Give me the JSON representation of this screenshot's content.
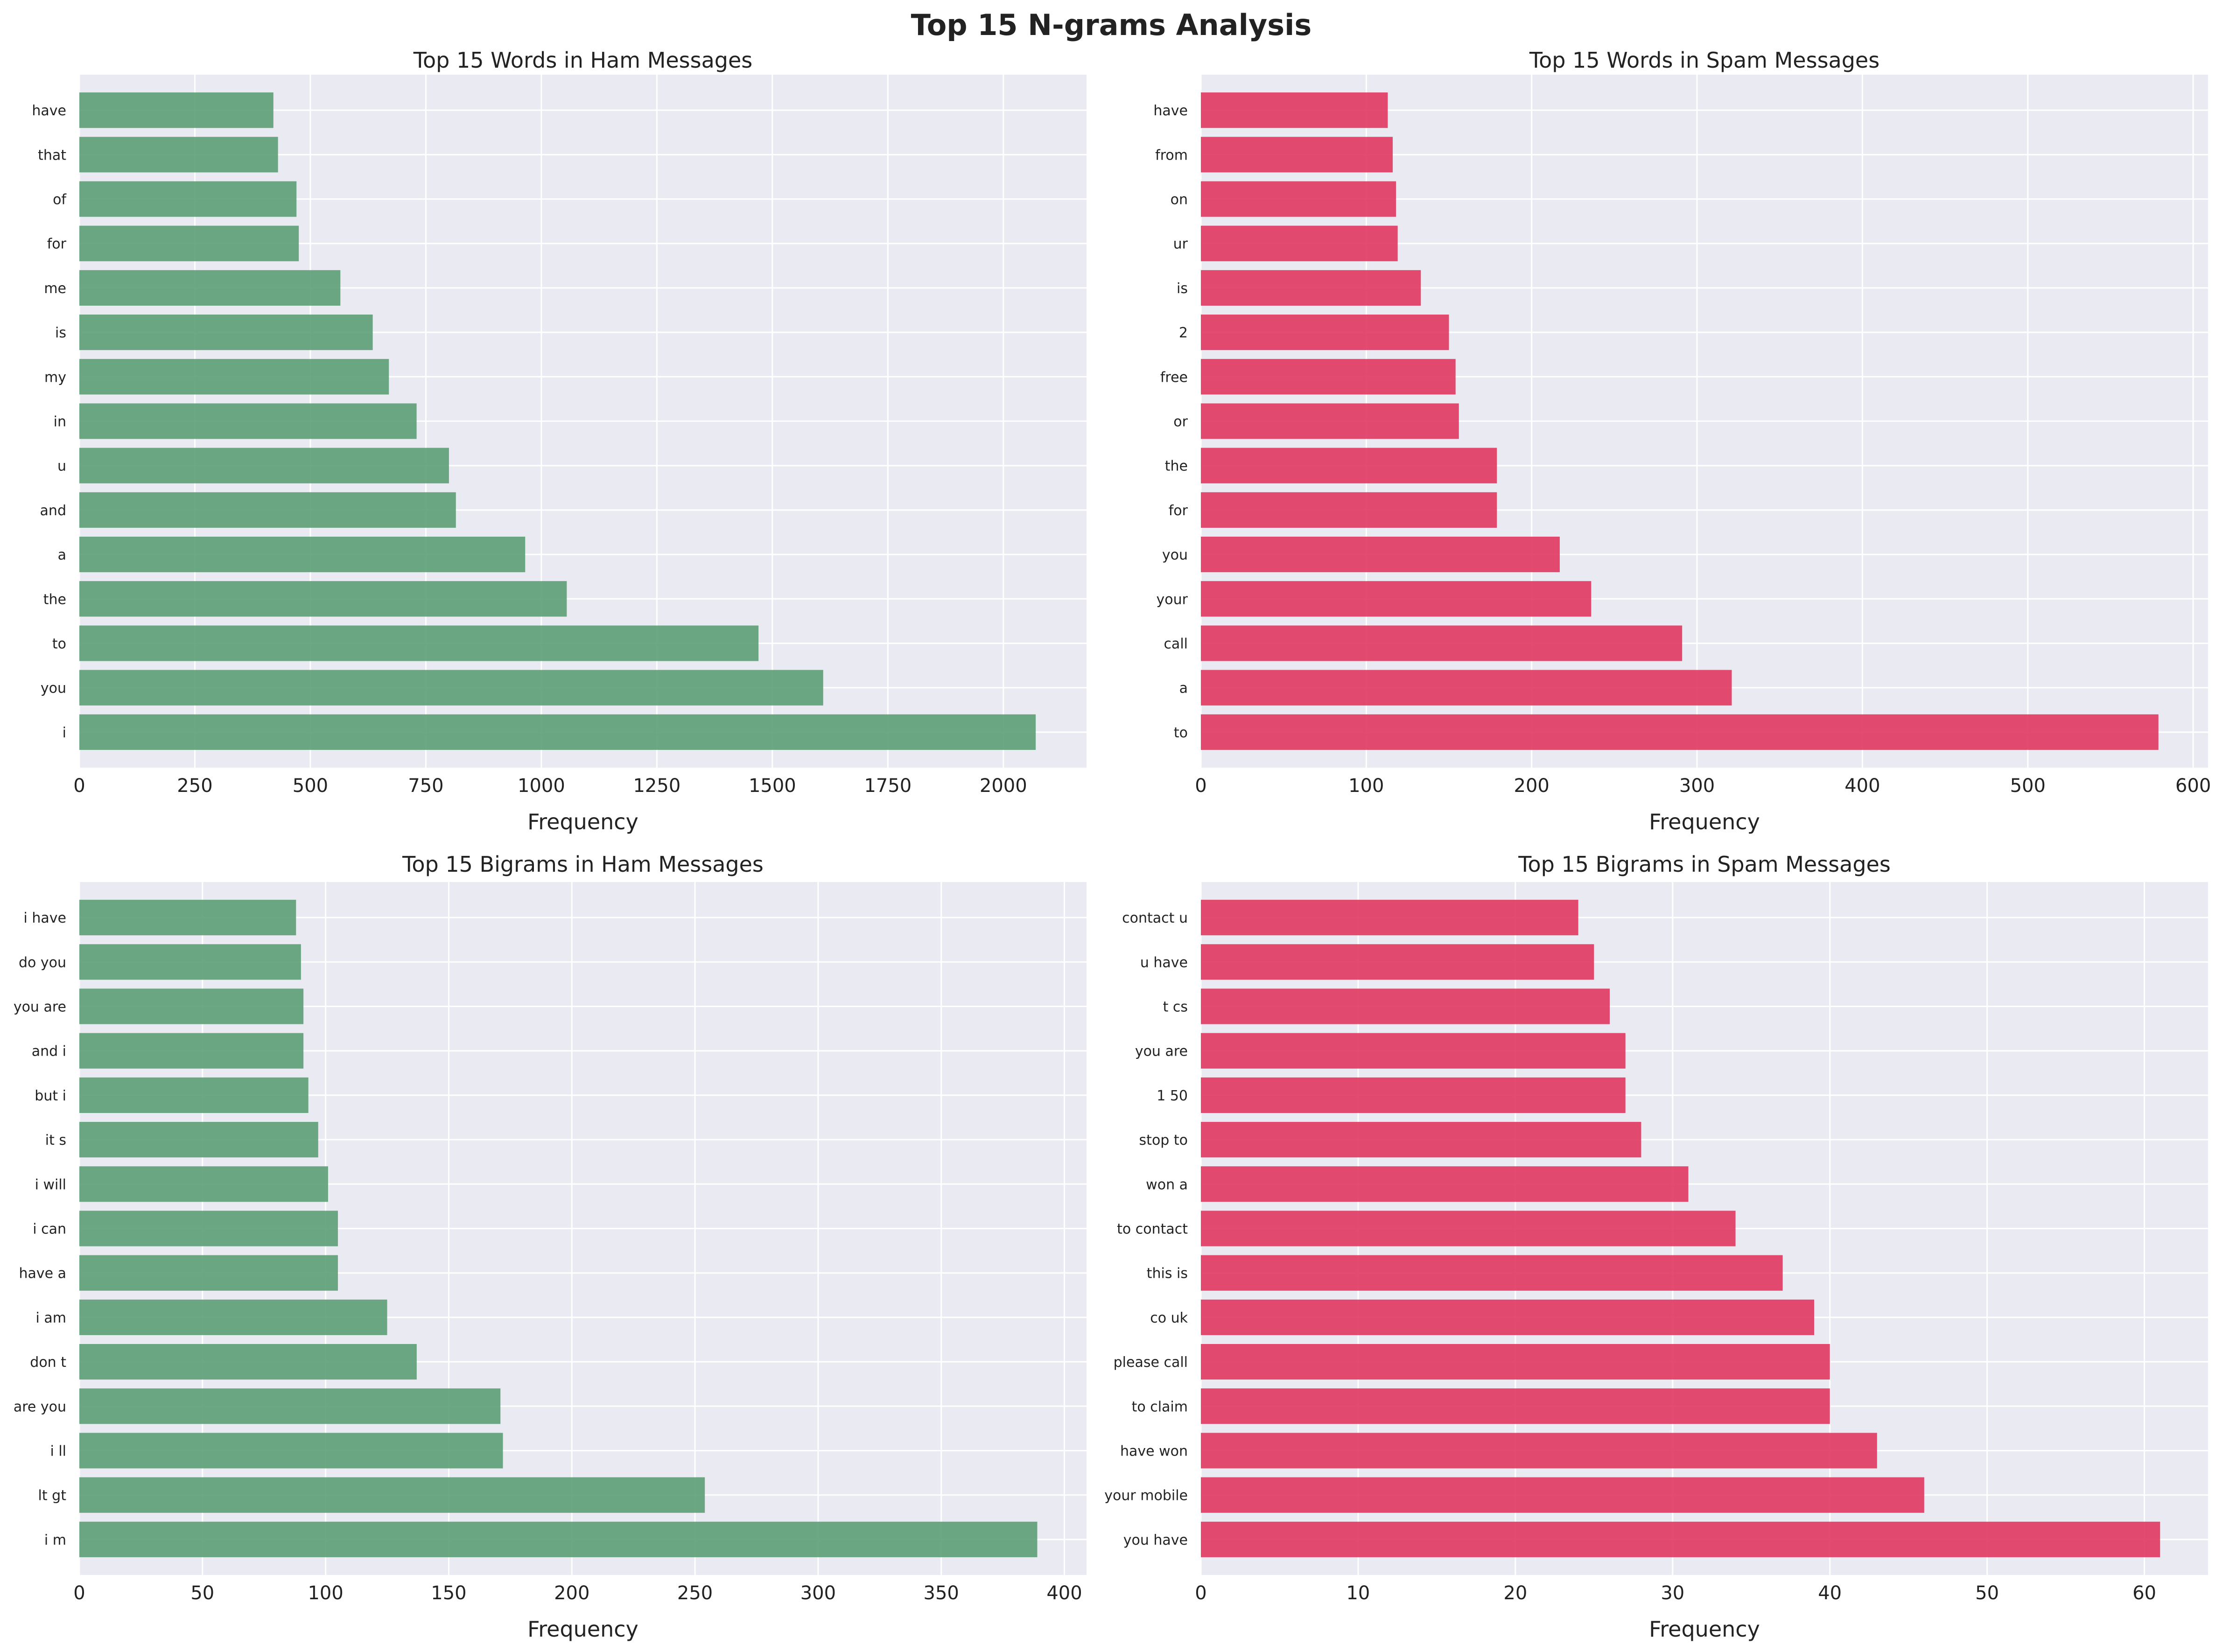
{
  "figure": {
    "title": "Top 15 N-grams Analysis"
  },
  "colors": {
    "ham": "#5c9e76",
    "spam": "#e0395f",
    "panel_bg": "#eaeaf2",
    "grid": "#ffffff"
  },
  "chart_data": [
    {
      "type": "bar",
      "orientation": "horizontal",
      "title": "Top 15 Words in Ham Messages",
      "xlabel": "Frequency",
      "color": "ham",
      "categories": [
        "i",
        "you",
        "to",
        "the",
        "a",
        "and",
        "u",
        "in",
        "my",
        "is",
        "me",
        "for",
        "of",
        "that",
        "have"
      ],
      "values": [
        2070,
        1610,
        1470,
        1055,
        965,
        815,
        800,
        730,
        670,
        635,
        565,
        475,
        470,
        430,
        420
      ],
      "xlim": [
        0,
        2180
      ],
      "xticks": [
        0,
        250,
        500,
        750,
        1000,
        1250,
        1500,
        1750,
        2000
      ]
    },
    {
      "type": "bar",
      "orientation": "horizontal",
      "title": "Top 15 Words in Spam Messages",
      "xlabel": "Frequency",
      "color": "spam",
      "categories": [
        "to",
        "a",
        "call",
        "your",
        "you",
        "for",
        "the",
        "or",
        "free",
        "2",
        "is",
        "ur",
        "on",
        "from",
        "have"
      ],
      "values": [
        579,
        321,
        291,
        236,
        217,
        179,
        179,
        156,
        154,
        150,
        133,
        119,
        118,
        116,
        113
      ],
      "xlim": [
        0,
        609
      ],
      "xticks": [
        0,
        100,
        200,
        300,
        400,
        500,
        600
      ]
    },
    {
      "type": "bar",
      "orientation": "horizontal",
      "title": "Top 15 Bigrams in Ham Messages",
      "xlabel": "Frequency",
      "color": "ham",
      "categories": [
        "i m",
        "lt gt",
        "i ll",
        "are you",
        "don t",
        "i am",
        "have a",
        "i can",
        "i will",
        "it s",
        "but i",
        "and i",
        "you are",
        "do you",
        "i have"
      ],
      "values": [
        389,
        254,
        172,
        171,
        137,
        125,
        105,
        105,
        101,
        97,
        93,
        91,
        91,
        90,
        88
      ],
      "xlim": [
        0,
        409
      ],
      "xticks": [
        0,
        50,
        100,
        150,
        200,
        250,
        300,
        350,
        400
      ]
    },
    {
      "type": "bar",
      "orientation": "horizontal",
      "title": "Top 15 Bigrams in Spam Messages",
      "xlabel": "Frequency",
      "color": "spam",
      "categories": [
        "you have",
        "your mobile",
        "have won",
        "to claim",
        "please call",
        "co uk",
        "this is",
        "to contact",
        "won a",
        "stop to",
        "1 50",
        "you are",
        "t cs",
        "u have",
        "contact u"
      ],
      "values": [
        61,
        46,
        43,
        40,
        40,
        39,
        37,
        34,
        31,
        28,
        27,
        27,
        26,
        25,
        24
      ],
      "xlim": [
        0,
        64.05
      ],
      "xticks": [
        0,
        10,
        20,
        30,
        40,
        50,
        60
      ]
    }
  ]
}
